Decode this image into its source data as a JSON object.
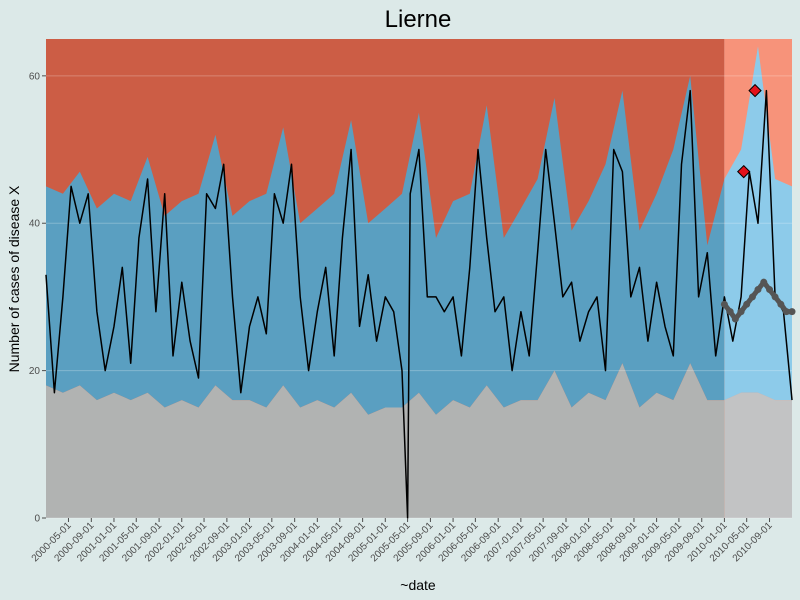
{
  "chart_data": {
    "type": "line",
    "title": "Lierne",
    "xlabel": "~date",
    "ylabel": "Number of cases of disease X",
    "xlim": [
      "2000-01-01",
      "2010-12-31"
    ],
    "ylim": [
      0,
      65
    ],
    "y_ticks": [
      0,
      20,
      40,
      60
    ],
    "x_ticks": [
      "2000-05-01",
      "2000-09-01",
      "2001-01-01",
      "2001-05-01",
      "2001-09-01",
      "2002-01-01",
      "2002-05-01",
      "2002-09-01",
      "2003-01-01",
      "2003-05-01",
      "2003-09-01",
      "2004-01-01",
      "2004-05-01",
      "2004-09-01",
      "2005-01-01",
      "2005-05-01",
      "2005-09-01",
      "2006-01-01",
      "2006-05-01",
      "2006-09-01",
      "2007-01-01",
      "2007-05-01",
      "2007-09-01",
      "2008-01-01",
      "2008-05-01",
      "2008-09-01",
      "2009-01-01",
      "2009-05-01",
      "2009-09-01",
      "2010-01-01",
      "2010-05-01",
      "2010-09-01"
    ],
    "grid": true,
    "forecast_start": "2010-01-01",
    "series": [
      {
        "role": "observed-cases",
        "color": "#000000",
        "x": [
          "2000-01-01",
          "2000-02-15",
          "2000-04-01",
          "2000-05-15",
          "2000-07-01",
          "2000-08-15",
          "2000-10-01",
          "2000-11-15",
          "2001-01-01",
          "2001-02-15",
          "2001-04-01",
          "2001-05-15",
          "2001-07-01",
          "2001-08-15",
          "2001-10-01",
          "2001-11-15",
          "2002-01-01",
          "2002-02-15",
          "2002-04-01",
          "2002-05-15",
          "2002-07-01",
          "2002-08-15",
          "2002-10-01",
          "2002-11-15",
          "2003-01-01",
          "2003-02-15",
          "2003-04-01",
          "2003-05-15",
          "2003-07-01",
          "2003-08-15",
          "2003-10-01",
          "2003-11-15",
          "2004-01-01",
          "2004-02-15",
          "2004-04-01",
          "2004-05-15",
          "2004-07-01",
          "2004-08-15",
          "2004-10-01",
          "2004-11-15",
          "2005-01-01",
          "2005-02-15",
          "2005-04-01",
          "2005-05-01",
          "2005-05-15",
          "2005-07-01",
          "2005-08-15",
          "2005-10-01",
          "2005-11-15",
          "2006-01-01",
          "2006-02-15",
          "2006-04-01",
          "2006-05-15",
          "2006-07-01",
          "2006-08-15",
          "2006-10-01",
          "2006-11-15",
          "2007-01-01",
          "2007-02-15",
          "2007-04-01",
          "2007-05-15",
          "2007-07-01",
          "2007-08-15",
          "2007-10-01",
          "2007-11-15",
          "2008-01-01",
          "2008-02-15",
          "2008-04-01",
          "2008-05-15",
          "2008-07-01",
          "2008-08-15",
          "2008-10-01",
          "2008-11-15",
          "2009-01-01",
          "2009-02-15",
          "2009-04-01",
          "2009-05-15",
          "2009-07-01",
          "2009-08-15",
          "2009-10-01",
          "2009-11-15",
          "2010-01-01",
          "2010-02-15",
          "2010-04-01",
          "2010-05-15",
          "2010-07-01",
          "2010-08-15",
          "2010-10-01",
          "2010-11-15",
          "2010-12-31"
        ],
        "values": [
          33,
          17,
          30,
          45,
          40,
          44,
          28,
          20,
          26,
          34,
          21,
          38,
          46,
          28,
          44,
          22,
          32,
          24,
          19,
          44,
          42,
          48,
          30,
          17,
          26,
          30,
          25,
          44,
          40,
          48,
          30,
          20,
          28,
          34,
          22,
          38,
          50,
          26,
          33,
          24,
          30,
          28,
          20,
          0,
          44,
          50,
          30,
          30,
          28,
          30,
          22,
          34,
          50,
          38,
          28,
          30,
          20,
          28,
          22,
          36,
          50,
          40,
          30,
          32,
          24,
          28,
          30,
          20,
          50,
          47,
          30,
          34,
          24,
          32,
          26,
          22,
          48,
          58,
          30,
          36,
          22,
          30,
          24,
          30,
          47,
          40,
          58,
          30,
          28,
          16
        ]
      },
      {
        "role": "forecast-mean",
        "color": "#555555",
        "x": [
          "2010-01-01",
          "2010-02-01",
          "2010-03-01",
          "2010-04-01",
          "2010-05-01",
          "2010-06-01",
          "2010-07-01",
          "2010-08-01",
          "2010-09-01",
          "2010-10-01",
          "2010-11-01",
          "2010-12-01",
          "2010-12-31"
        ],
        "values": [
          29,
          28,
          27,
          28,
          29,
          30,
          31,
          32,
          31,
          30,
          29,
          28,
          28
        ]
      }
    ],
    "bands": {
      "x": [
        "2000-01-01",
        "2000-04-01",
        "2000-07-01",
        "2000-10-01",
        "2001-01-01",
        "2001-04-01",
        "2001-07-01",
        "2001-10-01",
        "2002-01-01",
        "2002-04-01",
        "2002-07-01",
        "2002-10-01",
        "2003-01-01",
        "2003-04-01",
        "2003-07-01",
        "2003-10-01",
        "2004-01-01",
        "2004-04-01",
        "2004-07-01",
        "2004-10-01",
        "2005-01-01",
        "2005-04-01",
        "2005-07-01",
        "2005-10-01",
        "2006-01-01",
        "2006-04-01",
        "2006-07-01",
        "2006-10-01",
        "2007-01-01",
        "2007-04-01",
        "2007-07-01",
        "2007-10-01",
        "2008-01-01",
        "2008-04-01",
        "2008-07-01",
        "2008-10-01",
        "2009-01-01",
        "2009-04-01",
        "2009-07-01",
        "2009-10-01",
        "2010-01-01",
        "2010-04-01",
        "2010-07-01",
        "2010-10-01",
        "2010-12-31"
      ],
      "lower": [
        18,
        17,
        18,
        16,
        17,
        16,
        17,
        15,
        16,
        15,
        18,
        16,
        16,
        15,
        18,
        15,
        16,
        15,
        17,
        14,
        15,
        15,
        17,
        14,
        16,
        15,
        18,
        15,
        16,
        16,
        20,
        15,
        17,
        16,
        21,
        15,
        17,
        16,
        21,
        16,
        16,
        17,
        17,
        16,
        16
      ],
      "upper": [
        45,
        44,
        47,
        42,
        44,
        43,
        49,
        41,
        43,
        44,
        52,
        41,
        43,
        44,
        53,
        40,
        42,
        44,
        54,
        40,
        42,
        44,
        55,
        38,
        43,
        44,
        56,
        38,
        42,
        46,
        57,
        39,
        43,
        48,
        58,
        39,
        44,
        50,
        60,
        37,
        46,
        50,
        64,
        46,
        45
      ]
    },
    "exceedances": [
      {
        "x": "2010-04-15",
        "y": 47
      },
      {
        "x": "2010-06-15",
        "y": 58
      }
    ],
    "colors": {
      "high_region": "#cc5d45",
      "high_region_forecast": "#f7937a",
      "band": "#5a9fc1",
      "band_forecast": "#8dcbea",
      "low_region": "#b1b3b2",
      "low_region_forecast": "#c2c3c4",
      "observed_line": "#000000",
      "forecast_line": "#555555",
      "exceedance_marker": "#e3121b",
      "background": "#dce9e8"
    }
  }
}
